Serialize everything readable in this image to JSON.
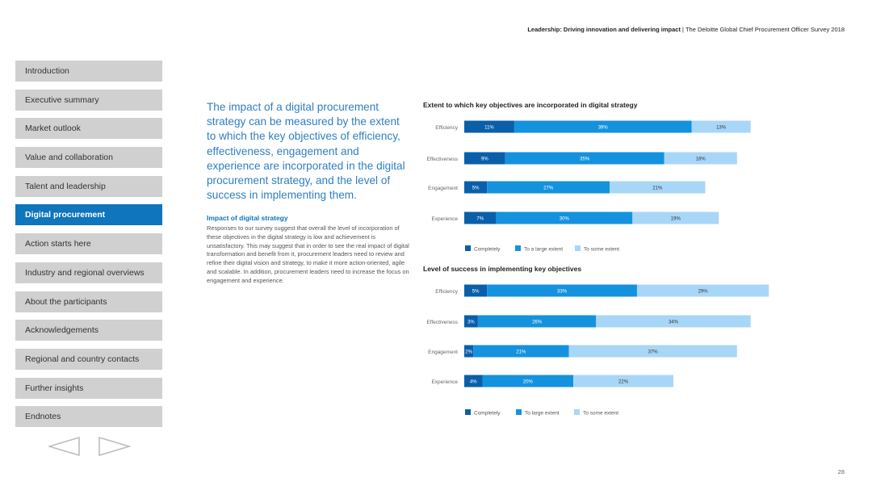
{
  "header": {
    "title_bold": "Leadership: Driving innovation and delivering impact",
    "separator": " | ",
    "title_rest": "The Deloitte Global Chief Procurement Officer Survey 2018"
  },
  "nav": {
    "items": [
      {
        "label": "Introduction",
        "active": false
      },
      {
        "label": "Executive summary",
        "active": false
      },
      {
        "label": "Market outlook",
        "active": false
      },
      {
        "label": "Value and collaboration",
        "active": false
      },
      {
        "label": "Talent and leadership",
        "active": false
      },
      {
        "label": "Digital procurement",
        "active": true
      },
      {
        "label": "Action starts here",
        "active": false
      },
      {
        "label": "Industry and regional overviews",
        "active": false
      },
      {
        "label": "About the participants",
        "active": false
      },
      {
        "label": "Acknowledgements",
        "active": false
      },
      {
        "label": "Regional and country contacts",
        "active": false
      },
      {
        "label": "Further insights",
        "active": false
      },
      {
        "label": "Endnotes",
        "active": false
      }
    ]
  },
  "content": {
    "lead": "The impact of a digital procurement strategy can be measured by the extent to which the key objectives of efficiency, effectiveness, engagement and experience are incorporated in the digital procurement strategy, and the level of success in implementing them.",
    "subheading": "Impact of digital strategy",
    "body": "Responses to our survey suggest that overall the level of incorporation of these objectives in the digital strategy is low and achievement is unsatisfactory. This may suggest that in order to see the real impact of digital transformation and benefit from it, procurement leaders need to review and refine their digital vision and strategy, to make it more action-oriented, agile and scalable. In addition, procurement leaders need to increase the focus on engagement and experience."
  },
  "colors": {
    "completely": "#0a5fa8",
    "large": "#1592de",
    "some": "#a8d6f7",
    "nav_active": "#0f75bc",
    "nav_inactive": "#d0d0d0",
    "lead_text": "#2f7fc2"
  },
  "chart_data": [
    {
      "type": "bar",
      "orientation": "horizontal-stacked",
      "title": "Extent to which key objectives are incorporated in digital strategy",
      "categories": [
        "Efficiency",
        "Effectiveness",
        "Engagement",
        "Experience"
      ],
      "series": [
        {
          "name": "Completely",
          "color": "#0a5fa8",
          "values": [
            11,
            9,
            5,
            7
          ]
        },
        {
          "name": "To a large extent",
          "color": "#1592de",
          "values": [
            39,
            35,
            27,
            30
          ]
        },
        {
          "name": "To some extent",
          "color": "#a8d6f7",
          "values": [
            13,
            16,
            21,
            19
          ]
        }
      ],
      "value_suffix": "%"
    },
    {
      "type": "bar",
      "orientation": "horizontal-stacked",
      "title": "Level of success in implementing key objectives",
      "categories": [
        "Efficiency",
        "Effectiveness",
        "Engagement",
        "Experience"
      ],
      "series": [
        {
          "name": "Completely",
          "color": "#0a5fa8",
          "values": [
            5,
            3,
            2,
            4
          ]
        },
        {
          "name": "To large extent",
          "color": "#1592de",
          "values": [
            33,
            26,
            21,
            20
          ]
        },
        {
          "name": "To some extent",
          "color": "#a8d6f7",
          "values": [
            29,
            34,
            37,
            22
          ]
        }
      ],
      "value_suffix": "%"
    }
  ],
  "page_number": "28"
}
